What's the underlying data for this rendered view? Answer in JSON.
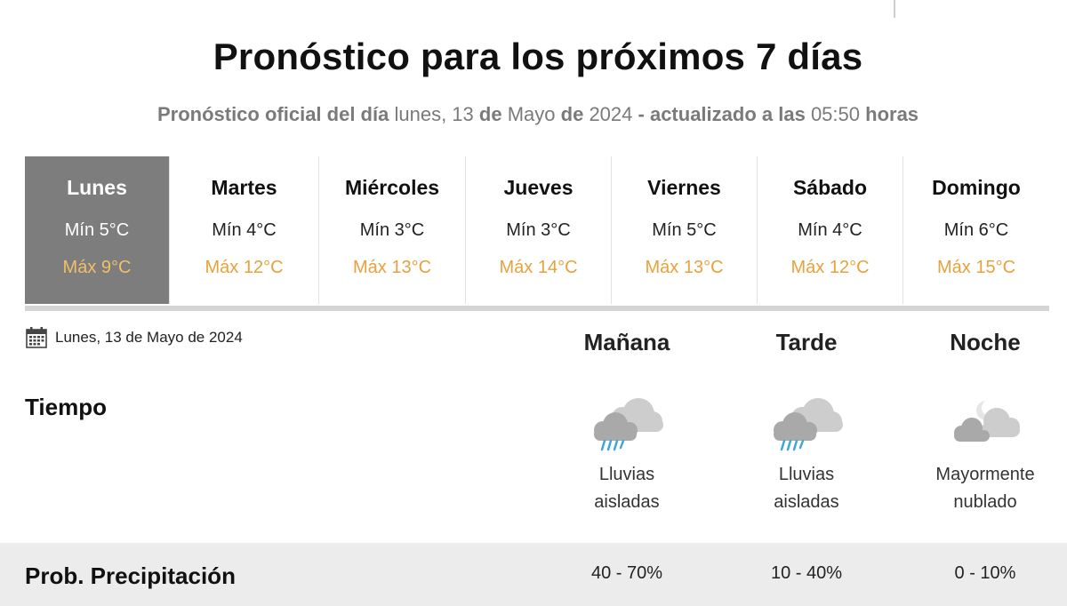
{
  "header": {
    "title": "Pronóstico para los próximos 7 días",
    "subtitle": {
      "prefix": "Pronóstico oficial del día",
      "weekday": "lunes, 13",
      "de1": "de",
      "month": "Mayo",
      "de2": "de",
      "year": "2024",
      "updated": "- actualizado a las",
      "time": "05:50",
      "hours": "horas"
    }
  },
  "days": [
    {
      "name": "Lunes",
      "min": "Mín 5°C",
      "max": "Máx 9°C",
      "selected": true
    },
    {
      "name": "Martes",
      "min": "Mín 4°C",
      "max": "Máx 12°C",
      "selected": false
    },
    {
      "name": "Miércoles",
      "min": "Mín 3°C",
      "max": "Máx 13°C",
      "selected": false
    },
    {
      "name": "Jueves",
      "min": "Mín 3°C",
      "max": "Máx 14°C",
      "selected": false
    },
    {
      "name": "Viernes",
      "min": "Mín 5°C",
      "max": "Máx 13°C",
      "selected": false
    },
    {
      "name": "Sábado",
      "min": "Mín 4°C",
      "max": "Máx 12°C",
      "selected": false
    },
    {
      "name": "Domingo",
      "min": "Mín 6°C",
      "max": "Máx 15°C",
      "selected": false
    }
  ],
  "detail": {
    "date": "Lunes, 13 de Mayo de 2024",
    "date_icon": "calendar-icon",
    "periods": [
      "Mañana",
      "Tarde",
      "Noche"
    ],
    "weather_label": "Tiempo",
    "weather": [
      {
        "icon": "rain-cloud-icon",
        "line1": "Lluvias",
        "line2": "aisladas"
      },
      {
        "icon": "rain-cloud-icon",
        "line1": "Lluvias",
        "line2": "aisladas"
      },
      {
        "icon": "night-cloudy-icon",
        "line1": "Mayormente",
        "line2": "nublado"
      }
    ],
    "precip_label": "Prob. Precipitación",
    "precip": [
      "40 - 70%",
      "10 - 40%",
      "0 - 10%"
    ]
  },
  "colors": {
    "selected_bg": "#7d7d7d",
    "max_temp": "#e9a13b",
    "precip_band": "#ececec"
  }
}
